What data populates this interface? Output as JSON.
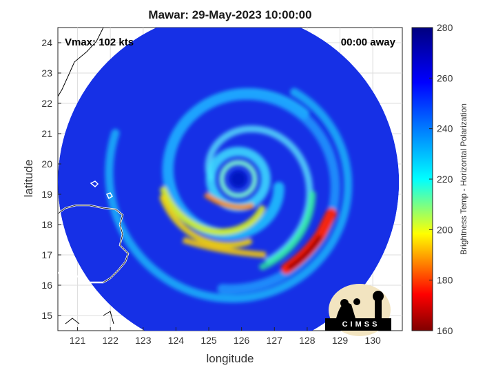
{
  "title": "Mawar: 29-May-2023 10:00:00",
  "vmax_label": "Vmax: 102 kts",
  "time_away": "00:00 away",
  "logo_text": "CIMSS",
  "chart_data": {
    "type": "heatmap",
    "title": "Mawar: 29-May-2023 10:00:00",
    "xlabel": "longitude",
    "ylabel": "latitude",
    "xlim": [
      120.4,
      130.9
    ],
    "ylim": [
      14.5,
      24.5
    ],
    "x_ticks": [
      121,
      122,
      123,
      124,
      125,
      126,
      127,
      128,
      129,
      130
    ],
    "y_ticks": [
      15,
      16,
      17,
      18,
      19,
      20,
      21,
      22,
      23,
      24
    ],
    "grid": true,
    "colorbar": {
      "label": "Brightness Temp - Horizontal Polarization",
      "range": [
        160,
        280
      ],
      "ticks": [
        160,
        180,
        200,
        220,
        240,
        260,
        280
      ],
      "colormap": [
        "#7f0000",
        "#ff0000",
        "#ffff00",
        "#00ffff",
        "#0080ff",
        "#0000ff",
        "#00007f"
      ]
    },
    "storm_center": {
      "lon": 125.9,
      "lat": 19.5
    },
    "swath_center": {
      "lon": 125.6,
      "lat": 19.4
    },
    "swath_radius_deg": 5.2
  },
  "colors": {
    "background_blue": "#1a3aee",
    "coast": "#ffffff"
  }
}
